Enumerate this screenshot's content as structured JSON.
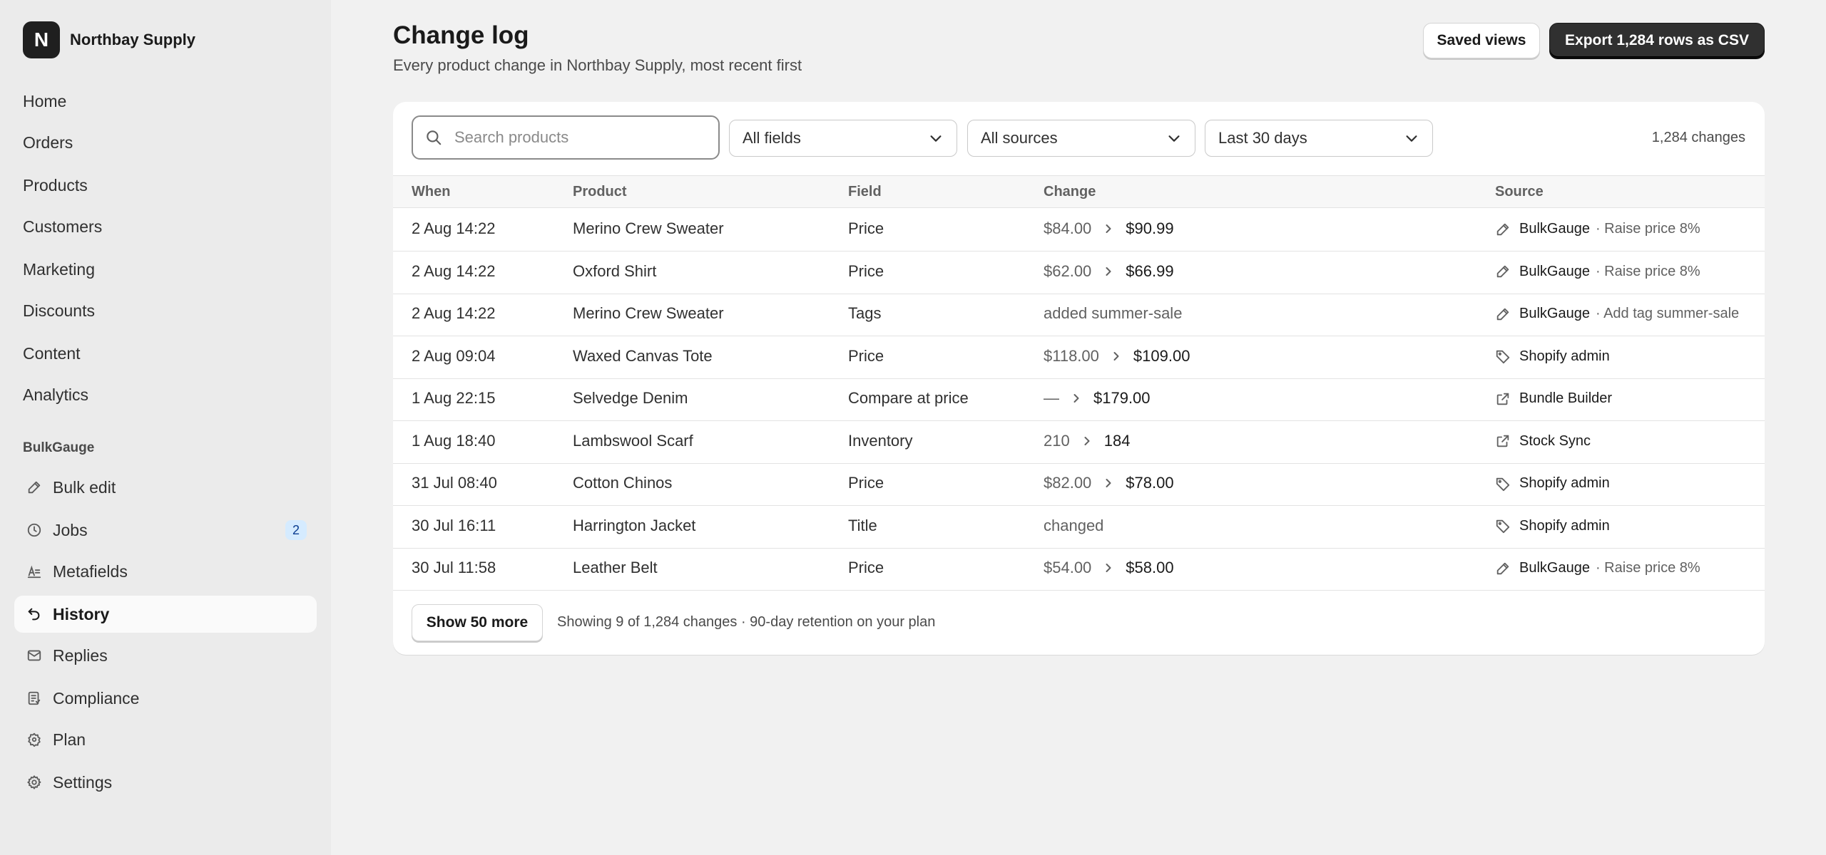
{
  "store": {
    "initial": "N",
    "name": "Northbay Supply"
  },
  "nav": {
    "main": [
      "Home",
      "Orders",
      "Products",
      "Customers",
      "Marketing",
      "Discounts",
      "Content",
      "Analytics"
    ],
    "app_section": "BulkGauge",
    "app_items": [
      {
        "label": "Bulk edit",
        "icon": "pencil-icon"
      },
      {
        "label": "Jobs",
        "icon": "clock-icon",
        "badge": "2"
      },
      {
        "label": "Metafields",
        "icon": "metafields-icon"
      },
      {
        "label": "History",
        "icon": "undo-icon",
        "active": true
      },
      {
        "label": "Replies",
        "icon": "mail-icon"
      },
      {
        "label": "Compliance",
        "icon": "checklist-icon"
      },
      {
        "label": "Plan",
        "icon": "plan-icon"
      },
      {
        "label": "Settings",
        "icon": "gear-icon"
      }
    ]
  },
  "header": {
    "title": "Change log",
    "subtitle": "Every product change in Northbay Supply, most recent first",
    "saved_views_label": "Saved views",
    "export_label": "Export 1,284 rows as CSV"
  },
  "filters": {
    "search_placeholder": "Search products",
    "field_select": "All fields",
    "source_select": "All sources",
    "date_select": "Last 30 days",
    "count": "1,284 changes"
  },
  "table": {
    "columns": [
      "When",
      "Product",
      "Field",
      "Change",
      "Source"
    ],
    "rows": [
      {
        "when": "2 Aug 14:22",
        "product": "Merino Crew Sweater",
        "field": "Price",
        "old": "$84.00",
        "new": "$90.99",
        "source": "BulkGauge",
        "source_icon": "pencil-icon",
        "note": "· Raise price 8%"
      },
      {
        "when": "2 Aug 14:22",
        "product": "Oxford Shirt",
        "field": "Price",
        "old": "$62.00",
        "new": "$66.99",
        "source": "BulkGauge",
        "source_icon": "pencil-icon",
        "note": "· Raise price 8%"
      },
      {
        "when": "2 Aug 14:22",
        "product": "Merino Crew Sweater",
        "field": "Tags",
        "text": "added summer-sale",
        "source": "BulkGauge",
        "source_icon": "pencil-icon",
        "note": "· Add tag summer-sale",
        "truncate": true
      },
      {
        "when": "2 Aug 09:04",
        "product": "Waxed Canvas Tote",
        "field": "Price",
        "old": "$118.00",
        "new": "$109.00",
        "source": "Shopify admin",
        "source_icon": "tag-icon"
      },
      {
        "when": "1 Aug 22:15",
        "product": "Selvedge Denim",
        "field": "Compare at price",
        "old": "—",
        "new": "$179.00",
        "source": "Bundle Builder",
        "source_icon": "external-link-icon"
      },
      {
        "when": "1 Aug 18:40",
        "product": "Lambswool Scarf",
        "field": "Inventory",
        "old": "210",
        "new": "184",
        "source": "Stock Sync",
        "source_icon": "external-link-icon"
      },
      {
        "when": "31 Jul 08:40",
        "product": "Cotton Chinos",
        "field": "Price",
        "old": "$82.00",
        "new": "$78.00",
        "source": "Shopify admin",
        "source_icon": "tag-icon"
      },
      {
        "when": "30 Jul 16:11",
        "product": "Harrington Jacket",
        "field": "Title",
        "text": "changed",
        "source": "Shopify admin",
        "source_icon": "tag-icon"
      },
      {
        "when": "30 Jul 11:58",
        "product": "Leather Belt",
        "field": "Price",
        "old": "$54.00",
        "new": "$58.00",
        "source": "BulkGauge",
        "source_icon": "pencil-icon",
        "note": "· Raise price 8%"
      }
    ]
  },
  "footer": {
    "more_label": "Show 50 more",
    "note": "Showing 9 of 1,284 changes · 90-day retention on your plan"
  }
}
